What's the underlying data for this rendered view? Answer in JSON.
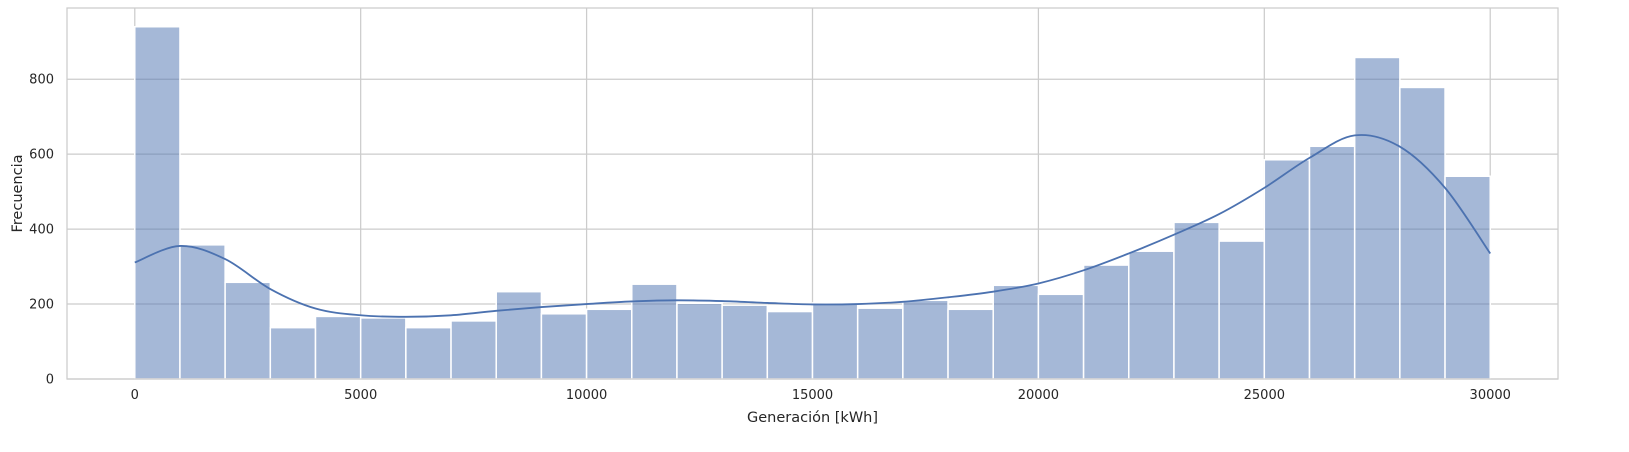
{
  "chart_data": {
    "type": "bar",
    "subtype": "histogram-with-kde",
    "title": "",
    "xlabel": "Generación [kWh]",
    "ylabel": "Frecuencia",
    "xlim": [
      -1500,
      31500
    ],
    "ylim": [
      0,
      990
    ],
    "xticks": [
      0,
      5000,
      10000,
      15000,
      20000,
      25000,
      30000
    ],
    "xtick_labels": [
      "0",
      "5000",
      "10000",
      "15000",
      "20000",
      "25000",
      "30000"
    ],
    "yticks": [
      0,
      200,
      400,
      600,
      800
    ],
    "ytick_labels": [
      "0",
      "200",
      "400",
      "600",
      "800"
    ],
    "grid": true,
    "bin_width": 1000,
    "bin_starts": [
      0,
      1000,
      2000,
      3000,
      4000,
      5000,
      6000,
      7000,
      8000,
      9000,
      10000,
      11000,
      12000,
      13000,
      14000,
      15000,
      16000,
      17000,
      18000,
      19000,
      20000,
      21000,
      22000,
      23000,
      24000,
      25000,
      26000,
      27000,
      28000,
      29000
    ],
    "values": [
      940,
      358,
      258,
      137,
      167,
      163,
      137,
      155,
      233,
      174,
      186,
      253,
      202,
      197,
      180,
      203,
      189,
      210,
      186,
      250,
      226,
      304,
      341,
      418,
      368,
      585,
      621,
      858,
      778,
      541
    ],
    "kde": {
      "x": [
        0,
        1000,
        2000,
        3000,
        4000,
        5000,
        6000,
        7000,
        8000,
        9000,
        10000,
        11000,
        12000,
        13000,
        14000,
        15000,
        16000,
        17000,
        18000,
        19000,
        20000,
        21000,
        22000,
        23000,
        24000,
        25000,
        26000,
        27000,
        28000,
        29000,
        30000
      ],
      "y": [
        311,
        355,
        320,
        240,
        188,
        170,
        166,
        170,
        182,
        192,
        200,
        207,
        210,
        208,
        203,
        199,
        200,
        206,
        218,
        233,
        255,
        290,
        335,
        385,
        440,
        510,
        590,
        650,
        620,
        510,
        335
      ]
    },
    "colors": {
      "bar_fill": "#4c72b0",
      "bar_opacity": 0.5,
      "bar_edge": "#ffffff",
      "kde_line": "#4c72b0",
      "grid": "#cccccc",
      "axis_frame": "#cccccc",
      "text": "#262626"
    }
  }
}
